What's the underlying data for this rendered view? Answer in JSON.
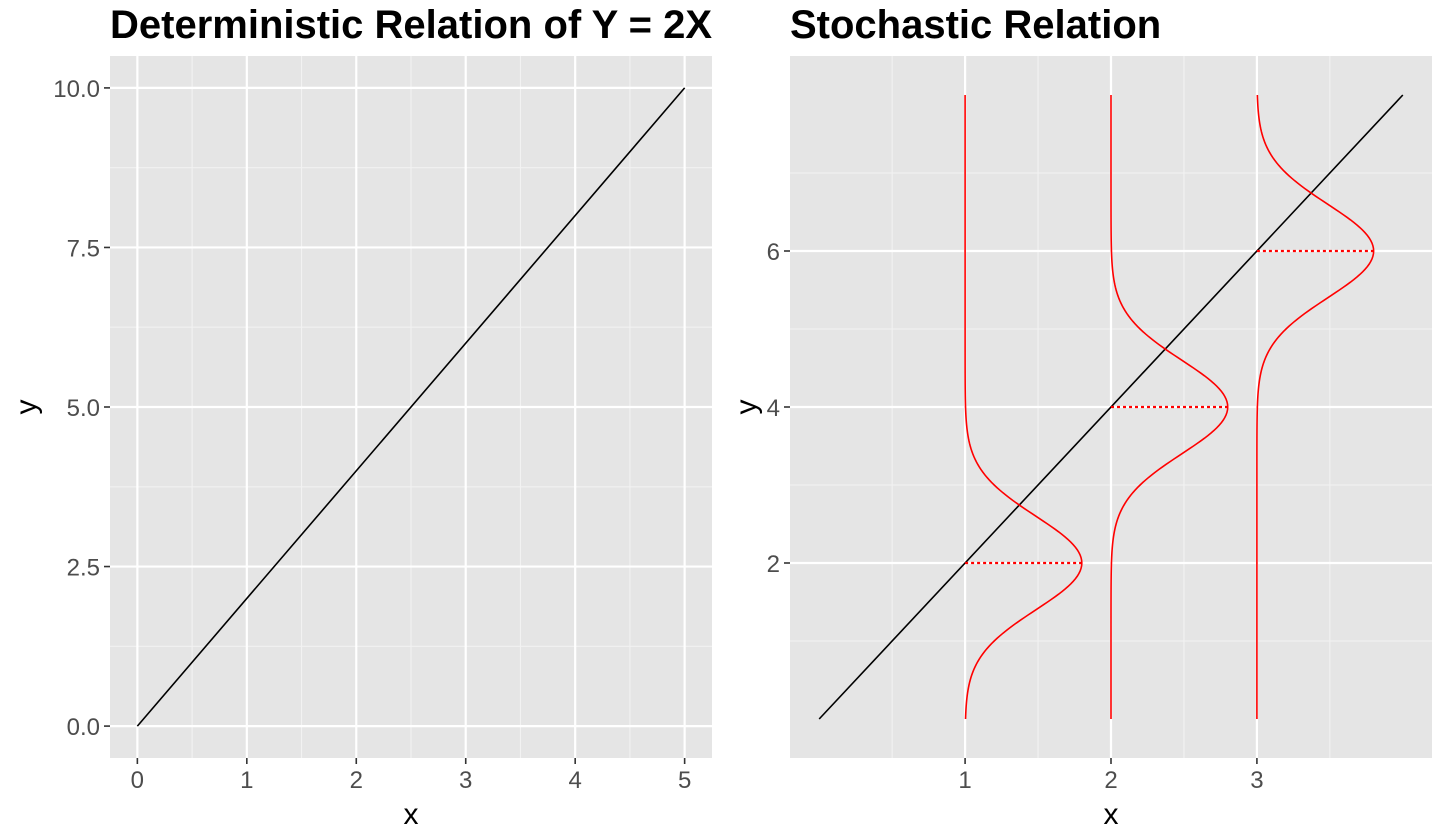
{
  "chart_data": [
    {
      "type": "line",
      "title": "Deterministic Relation of Y = 2X",
      "xlabel": "x",
      "ylabel": "y",
      "xlim": [
        -0.25,
        5.25
      ],
      "ylim": [
        -0.5,
        10.5
      ],
      "x_ticks": [
        0,
        1,
        2,
        3,
        4,
        5
      ],
      "x_tick_labels": [
        "0",
        "1",
        "2",
        "3",
        "4",
        "5"
      ],
      "y_ticks": [
        0,
        2.5,
        5,
        7.5,
        10
      ],
      "y_tick_labels": [
        "0.0",
        "2.5",
        "5.0",
        "7.5",
        "10.0"
      ],
      "grid": true,
      "series": [
        {
          "x": [
            0,
            5
          ],
          "y": [
            0,
            10
          ],
          "color": "#000000"
        }
      ]
    },
    {
      "type": "line",
      "title": "Stochastic Relation",
      "xlabel": "x",
      "ylabel": "y",
      "xlim": [
        -0.2,
        4.2
      ],
      "ylim": [
        -0.5,
        8.5
      ],
      "x_ticks": [
        1,
        2,
        3
      ],
      "x_tick_labels": [
        "1",
        "2",
        "3"
      ],
      "y_ticks": [
        2,
        4,
        6
      ],
      "y_tick_labels": [
        "2",
        "4",
        "6"
      ],
      "grid": true,
      "series": [
        {
          "x": [
            0,
            4
          ],
          "y": [
            0,
            8
          ],
          "color": "#000000"
        }
      ],
      "distributions": [
        {
          "x": 1,
          "mean": 2,
          "sd": 0.6,
          "peak_width": 0.8,
          "y_range": [
            0,
            8
          ],
          "color": "#ff0000"
        },
        {
          "x": 2,
          "mean": 4,
          "sd": 0.6,
          "peak_width": 0.8,
          "y_range": [
            0,
            8
          ],
          "color": "#ff0000"
        },
        {
          "x": 3,
          "mean": 6,
          "sd": 0.6,
          "peak_width": 0.8,
          "y_range": [
            0,
            8
          ],
          "color": "#ff0000"
        }
      ]
    }
  ],
  "colors": {
    "panel_background": "#e5e5e5",
    "grid_major": "#ffffff",
    "grid_minor": "#f2f2f2",
    "line": "#000000",
    "distribution": "#ff0000",
    "tick_text": "#4d4d4d",
    "tick_mark": "#333333"
  }
}
